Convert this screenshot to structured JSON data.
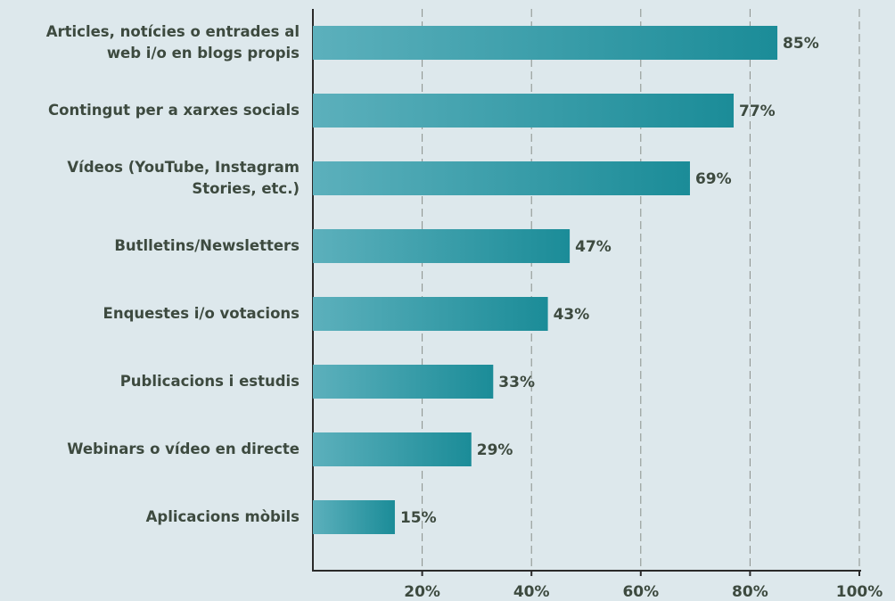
{
  "chart_data": {
    "type": "hbar",
    "categories": [
      "Articles, notícies o entrades al\nweb i/o en blogs propis",
      "Contingut per a xarxes socials",
      "Vídeos (YouTube, Instagram\nStories, etc.)",
      "Butlletins/Newsletters",
      "Enquestes i/o votacions",
      "Publicacions i estudis",
      "Webinars o vídeo en directe",
      "Aplicacions mòbils"
    ],
    "values": [
      85,
      77,
      69,
      47,
      43,
      33,
      29,
      15
    ],
    "value_labels": [
      "85%",
      "77%",
      "69%",
      "47%",
      "43%",
      "33%",
      "29%",
      "15%"
    ],
    "gradient": [
      "#5cb0bc",
      "#1b8c98"
    ],
    "xlim": [
      0,
      100
    ],
    "xticks": [
      {
        "value": 20,
        "label": "20%"
      },
      {
        "value": 40,
        "label": "40%"
      },
      {
        "value": 60,
        "label": "60%"
      },
      {
        "value": 80,
        "label": "80%"
      },
      {
        "value": 100,
        "label": "100%"
      }
    ],
    "grid": true
  }
}
